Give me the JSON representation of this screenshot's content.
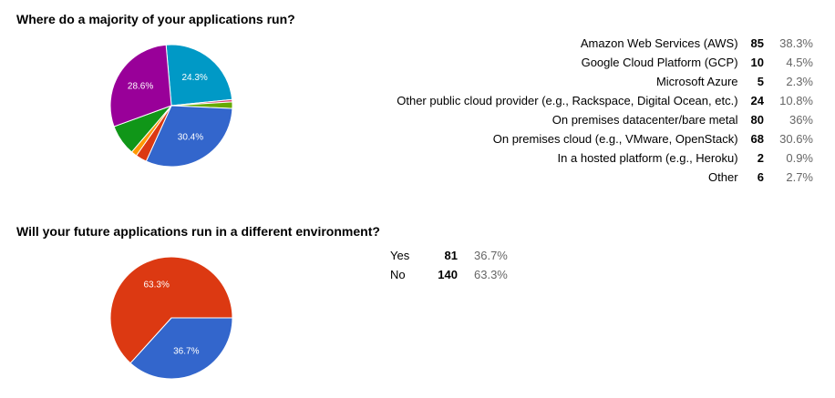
{
  "chart_data": [
    {
      "type": "pie",
      "title": "Where do a majority of your applications run?",
      "slices": [
        {
          "label": "Amazon Web Services (AWS)",
          "count": 85,
          "percent": "38.3%",
          "value": 38.3,
          "color": "#0099c6"
        },
        {
          "label": "Google Cloud Platform (GCP)",
          "count": 10,
          "percent": "4.5%",
          "value": 4.5,
          "color": "#109618"
        },
        {
          "label": "Microsoft Azure",
          "count": 5,
          "percent": "2.3%",
          "value": 2.3,
          "color": "#ff9900"
        },
        {
          "label": "Other public cloud provider (e.g., Rackspace, Digital Ocean, etc.)",
          "count": 24,
          "percent": "10.8%",
          "value": 10.8,
          "color": "#dc3912"
        },
        {
          "label": "On premises datacenter/bare metal",
          "count": 80,
          "percent": "36%",
          "value": 36.0,
          "color": "#3366cc"
        },
        {
          "label": "On premises cloud (e.g., VMware, OpenStack)",
          "count": 68,
          "percent": "30.6%",
          "value": 30.6,
          "color": "#990099"
        },
        {
          "label": "In a hosted platform (e.g., Heroku)",
          "count": 2,
          "percent": "0.9%",
          "value": 0.9,
          "color": "#dd4477"
        },
        {
          "label": "Other",
          "count": 6,
          "percent": "2.7%",
          "value": 2.7,
          "color": "#66aa00"
        }
      ],
      "pie_slices": [
        {
          "value": 24.3,
          "label": "24.3%",
          "color": "#0099c6"
        },
        {
          "value": 0.6,
          "label": "",
          "color": "#dd4477"
        },
        {
          "value": 1.7,
          "label": "",
          "color": "#66aa00"
        },
        {
          "value": 30.4,
          "label": "30.4%",
          "color": "#3366cc"
        },
        {
          "value": 2.9,
          "label": "",
          "color": "#dc3912"
        },
        {
          "value": 1.5,
          "label": "",
          "color": "#ff9900"
        },
        {
          "value": 8.0,
          "label": "",
          "color": "#109618"
        },
        {
          "value": 28.6,
          "label": "28.6%",
          "color": "#990099"
        }
      ]
    },
    {
      "type": "pie",
      "title": "Will your future applications run in a different environment?",
      "slices": [
        {
          "label": "Yes",
          "count": 81,
          "percent": "36.7%",
          "value": 36.7,
          "color": "#3366cc"
        },
        {
          "label": "No",
          "count": 140,
          "percent": "63.3%",
          "value": 63.3,
          "color": "#dc3912"
        }
      ],
      "pie_slices": [
        {
          "value": 36.7,
          "label": "36.7%",
          "color": "#3366cc"
        },
        {
          "value": 63.3,
          "label": "63.3%",
          "color": "#dc3912"
        }
      ]
    }
  ]
}
